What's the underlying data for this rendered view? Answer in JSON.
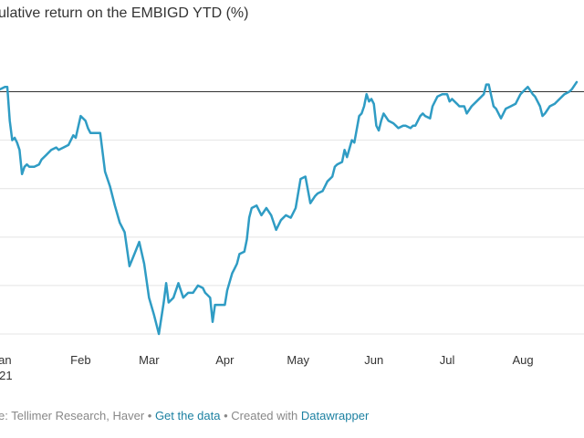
{
  "title": "ulative return on the EMBIGD YTD (%)",
  "footer": {
    "source_text": "e: Tellimer Research, Haver",
    "sep1": " • ",
    "get_data": "Get the data",
    "sep2": " • Created with ",
    "datawrapper": "Datawrapper"
  },
  "chart_data": {
    "type": "line",
    "title": "ulative return on the EMBIGD YTD (%)",
    "xlabel": "",
    "ylabel": "",
    "x_ticks": [
      {
        "label": "an",
        "sub": "21",
        "day": 0
      },
      {
        "label": "Feb",
        "sub": "",
        "day": 31
      },
      {
        "label": "Mar",
        "sub": "",
        "day": 59
      },
      {
        "label": "Apr",
        "sub": "",
        "day": 90
      },
      {
        "label": "May",
        "sub": "",
        "day": 120
      },
      {
        "label": "Jun",
        "sub": "",
        "day": 151
      },
      {
        "label": "Jul",
        "sub": "",
        "day": 181
      },
      {
        "label": "Aug",
        "sub": "",
        "day": 212
      }
    ],
    "x_range": [
      -2,
      237
    ],
    "y_range": [
      -5,
      0.5
    ],
    "grid": true,
    "baseline": 0,
    "color": "#2f9cc4",
    "series": [
      {
        "values": [
          [
            -2,
            0.05
          ],
          [
            0,
            0.1
          ],
          [
            1,
            0.1
          ],
          [
            2,
            -0.6
          ],
          [
            3,
            -1.0
          ],
          [
            4,
            -0.95
          ],
          [
            5,
            -1.05
          ],
          [
            6,
            -1.2
          ],
          [
            7,
            -1.7
          ],
          [
            8,
            -1.55
          ],
          [
            9,
            -1.5
          ],
          [
            10,
            -1.55
          ],
          [
            12,
            -1.55
          ],
          [
            14,
            -1.5
          ],
          [
            15,
            -1.4
          ],
          [
            17,
            -1.3
          ],
          [
            19,
            -1.2
          ],
          [
            21,
            -1.15
          ],
          [
            22,
            -1.2
          ],
          [
            24,
            -1.15
          ],
          [
            26,
            -1.1
          ],
          [
            28,
            -0.9
          ],
          [
            29,
            -0.95
          ],
          [
            31,
            -0.5
          ],
          [
            33,
            -0.6
          ],
          [
            34,
            -0.75
          ],
          [
            35,
            -0.85
          ],
          [
            37,
            -0.85
          ],
          [
            39,
            -0.85
          ],
          [
            41,
            -1.65
          ],
          [
            43,
            -1.95
          ],
          [
            45,
            -2.35
          ],
          [
            47,
            -2.7
          ],
          [
            49,
            -2.9
          ],
          [
            51,
            -3.6
          ],
          [
            53,
            -3.35
          ],
          [
            55,
            -3.1
          ],
          [
            57,
            -3.55
          ],
          [
            59,
            -4.25
          ],
          [
            61,
            -4.6
          ],
          [
            63,
            -5.0
          ],
          [
            65,
            -4.35
          ],
          [
            66,
            -3.95
          ],
          [
            67,
            -4.35
          ],
          [
            69,
            -4.25
          ],
          [
            71,
            -3.95
          ],
          [
            73,
            -4.25
          ],
          [
            75,
            -4.15
          ],
          [
            77,
            -4.15
          ],
          [
            79,
            -4.0
          ],
          [
            81,
            -4.05
          ],
          [
            82,
            -4.15
          ],
          [
            83,
            -4.2
          ],
          [
            84,
            -4.25
          ],
          [
            85,
            -4.75
          ],
          [
            86,
            -4.4
          ],
          [
            88,
            -4.4
          ],
          [
            90,
            -4.4
          ],
          [
            91,
            -4.1
          ],
          [
            93,
            -3.75
          ],
          [
            94,
            -3.65
          ],
          [
            95,
            -3.55
          ],
          [
            96,
            -3.35
          ],
          [
            98,
            -3.3
          ],
          [
            99,
            -3.05
          ],
          [
            100,
            -2.6
          ],
          [
            101,
            -2.4
          ],
          [
            103,
            -2.35
          ],
          [
            105,
            -2.55
          ],
          [
            107,
            -2.4
          ],
          [
            109,
            -2.55
          ],
          [
            111,
            -2.85
          ],
          [
            113,
            -2.65
          ],
          [
            115,
            -2.55
          ],
          [
            117,
            -2.6
          ],
          [
            119,
            -2.4
          ],
          [
            121,
            -1.8
          ],
          [
            123,
            -1.75
          ],
          [
            125,
            -2.3
          ],
          [
            127,
            -2.15
          ],
          [
            128,
            -2.1
          ],
          [
            130,
            -2.05
          ],
          [
            131,
            -1.95
          ],
          [
            132,
            -1.85
          ],
          [
            134,
            -1.75
          ],
          [
            135,
            -1.55
          ],
          [
            136,
            -1.5
          ],
          [
            138,
            -1.45
          ],
          [
            139,
            -1.2
          ],
          [
            140,
            -1.35
          ],
          [
            142,
            -1.0
          ],
          [
            143,
            -1.05
          ],
          [
            145,
            -0.5
          ],
          [
            146,
            -0.45
          ],
          [
            147,
            -0.3
          ],
          [
            148,
            -0.05
          ],
          [
            149,
            -0.2
          ],
          [
            150,
            -0.15
          ],
          [
            151,
            -0.25
          ],
          [
            152,
            -0.7
          ],
          [
            153,
            -0.8
          ],
          [
            154,
            -0.6
          ],
          [
            155,
            -0.45
          ],
          [
            157,
            -0.6
          ],
          [
            159,
            -0.65
          ],
          [
            160,
            -0.7
          ],
          [
            161,
            -0.75
          ],
          [
            163,
            -0.7
          ],
          [
            164,
            -0.7
          ],
          [
            166,
            -0.75
          ],
          [
            167,
            -0.7
          ],
          [
            168,
            -0.7
          ],
          [
            170,
            -0.5
          ],
          [
            171,
            -0.45
          ],
          [
            172,
            -0.5
          ],
          [
            174,
            -0.55
          ],
          [
            175,
            -0.3
          ],
          [
            177,
            -0.1
          ],
          [
            179,
            -0.05
          ],
          [
            181,
            -0.05
          ],
          [
            182,
            -0.2
          ],
          [
            183,
            -0.15
          ],
          [
            185,
            -0.25
          ],
          [
            186,
            -0.3
          ],
          [
            188,
            -0.3
          ],
          [
            189,
            -0.45
          ],
          [
            191,
            -0.3
          ],
          [
            193,
            -0.2
          ],
          [
            196,
            -0.05
          ],
          [
            197,
            0.15
          ],
          [
            198,
            0.15
          ],
          [
            200,
            -0.3
          ],
          [
            201,
            -0.35
          ],
          [
            203,
            -0.55
          ],
          [
            205,
            -0.35
          ],
          [
            207,
            -0.3
          ],
          [
            209,
            -0.25
          ],
          [
            211,
            -0.05
          ],
          [
            213,
            0.05
          ],
          [
            214,
            0.1
          ],
          [
            216,
            -0.05
          ],
          [
            217,
            -0.1
          ],
          [
            218,
            -0.2
          ],
          [
            219,
            -0.3
          ],
          [
            220,
            -0.5
          ],
          [
            221,
            -0.45
          ],
          [
            223,
            -0.3
          ],
          [
            225,
            -0.25
          ],
          [
            227,
            -0.15
          ],
          [
            229,
            -0.05
          ],
          [
            231,
            0.0
          ],
          [
            232,
            0.05
          ],
          [
            234,
            0.2
          ]
        ]
      }
    ]
  }
}
